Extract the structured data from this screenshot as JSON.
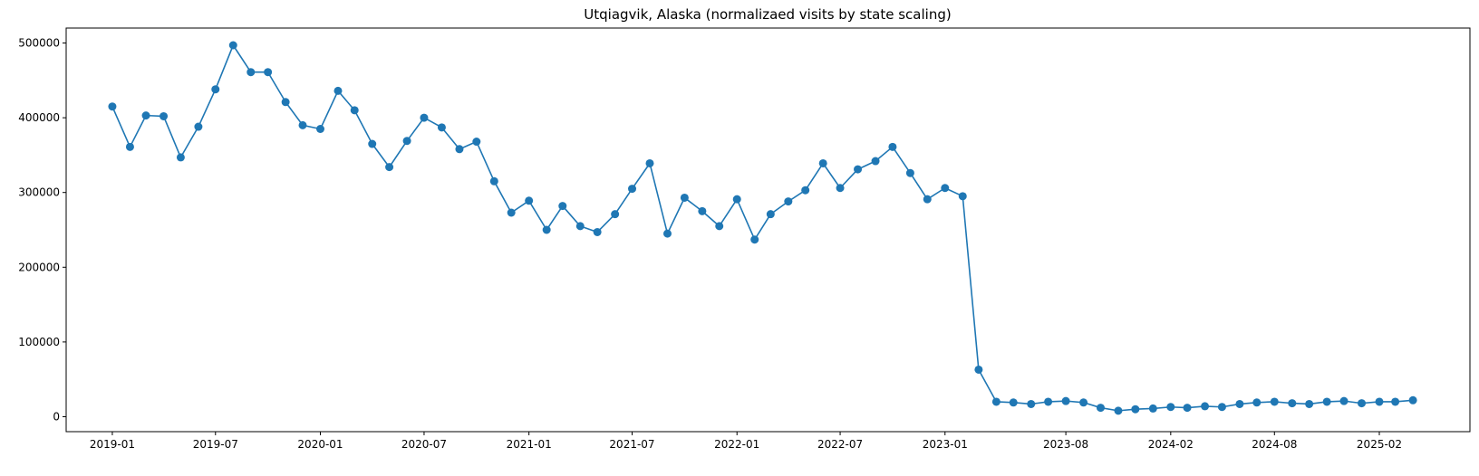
{
  "chart_data": {
    "type": "line",
    "title": "Utqiagvik, Alaska (normalizaed visits by state scaling)",
    "xlabel": "",
    "ylabel": "",
    "color": "#1f77b4",
    "marker": "circle",
    "grid": false,
    "legend": null,
    "x_range": [
      "2018-10-12",
      "2025-07-10"
    ],
    "ylim": [
      -20000,
      520000
    ],
    "x_ticks": [
      {
        "date": "2019-01-01",
        "label": "2019-01"
      },
      {
        "date": "2019-07-01",
        "label": "2019-07"
      },
      {
        "date": "2020-01-01",
        "label": "2020-01"
      },
      {
        "date": "2020-07-01",
        "label": "2020-07"
      },
      {
        "date": "2021-01-01",
        "label": "2021-01"
      },
      {
        "date": "2021-07-01",
        "label": "2021-07"
      },
      {
        "date": "2022-01-01",
        "label": "2022-01"
      },
      {
        "date": "2022-07-01",
        "label": "2022-07"
      },
      {
        "date": "2023-01-01",
        "label": "2023-01"
      },
      {
        "date": "2023-08-01",
        "label": "2023-08"
      },
      {
        "date": "2024-02-01",
        "label": "2024-02"
      },
      {
        "date": "2024-08-01",
        "label": "2024-08"
      },
      {
        "date": "2025-02-01",
        "label": "2025-02"
      }
    ],
    "y_ticks": [
      {
        "value": 0,
        "label": "0"
      },
      {
        "value": 100000,
        "label": "100000"
      },
      {
        "value": 200000,
        "label": "200000"
      },
      {
        "value": 300000,
        "label": "300000"
      },
      {
        "value": 400000,
        "label": "400000"
      },
      {
        "value": 500000,
        "label": "500000"
      }
    ],
    "series": [
      {
        "x": [
          "2019-01-01",
          "2019-02-01",
          "2019-03-01",
          "2019-04-01",
          "2019-05-01",
          "2019-06-01",
          "2019-07-01",
          "2019-08-01",
          "2019-09-01",
          "2019-10-01",
          "2019-11-01",
          "2019-12-01",
          "2020-01-01",
          "2020-02-01",
          "2020-03-01",
          "2020-04-01",
          "2020-05-01",
          "2020-06-01",
          "2020-07-01",
          "2020-08-01",
          "2020-09-01",
          "2020-10-01",
          "2020-11-01",
          "2020-12-01",
          "2021-01-01",
          "2021-02-01",
          "2021-03-01",
          "2021-04-01",
          "2021-05-01",
          "2021-06-01",
          "2021-07-01",
          "2021-08-01",
          "2021-09-01",
          "2021-10-01",
          "2021-11-01",
          "2021-12-01",
          "2022-01-01",
          "2022-02-01",
          "2022-03-01",
          "2022-04-01",
          "2022-05-01",
          "2022-06-01",
          "2022-07-01",
          "2022-08-01",
          "2022-09-01",
          "2022-10-01",
          "2022-11-01",
          "2022-12-01",
          "2023-01-01",
          "2023-02-01",
          "2023-03-01",
          "2023-04-01",
          "2023-05-01",
          "2023-06-01",
          "2023-07-01",
          "2023-08-01",
          "2023-09-01",
          "2023-10-01",
          "2023-11-01",
          "2023-12-01",
          "2024-01-01",
          "2024-02-01",
          "2024-03-01",
          "2024-04-01",
          "2024-05-01",
          "2024-06-01",
          "2024-07-01",
          "2024-08-01",
          "2024-09-01",
          "2024-10-01",
          "2024-11-01",
          "2024-12-01",
          "2025-01-01",
          "2025-02-01",
          "2025-03-01",
          "2025-04-01"
        ],
        "values": [
          415000,
          361000,
          403000,
          402000,
          347000,
          388000,
          438000,
          497000,
          461000,
          461000,
          421000,
          390000,
          385000,
          436000,
          410000,
          365000,
          334000,
          369000,
          400000,
          387000,
          358000,
          368000,
          315000,
          273000,
          289000,
          250000,
          282000,
          255000,
          247000,
          271000,
          305000,
          339000,
          245000,
          293000,
          275000,
          255000,
          291000,
          237000,
          271000,
          288000,
          303000,
          339000,
          306000,
          331000,
          342000,
          361000,
          326000,
          291000,
          306000,
          295000,
          63000,
          20000,
          19000,
          17000,
          20000,
          21000,
          19000,
          12000,
          8000,
          10000,
          11000,
          13000,
          12000,
          14000,
          13000,
          17000,
          19000,
          20000,
          18000,
          17000,
          20000,
          21000,
          18000,
          20000,
          20000,
          22000
        ]
      }
    ]
  }
}
